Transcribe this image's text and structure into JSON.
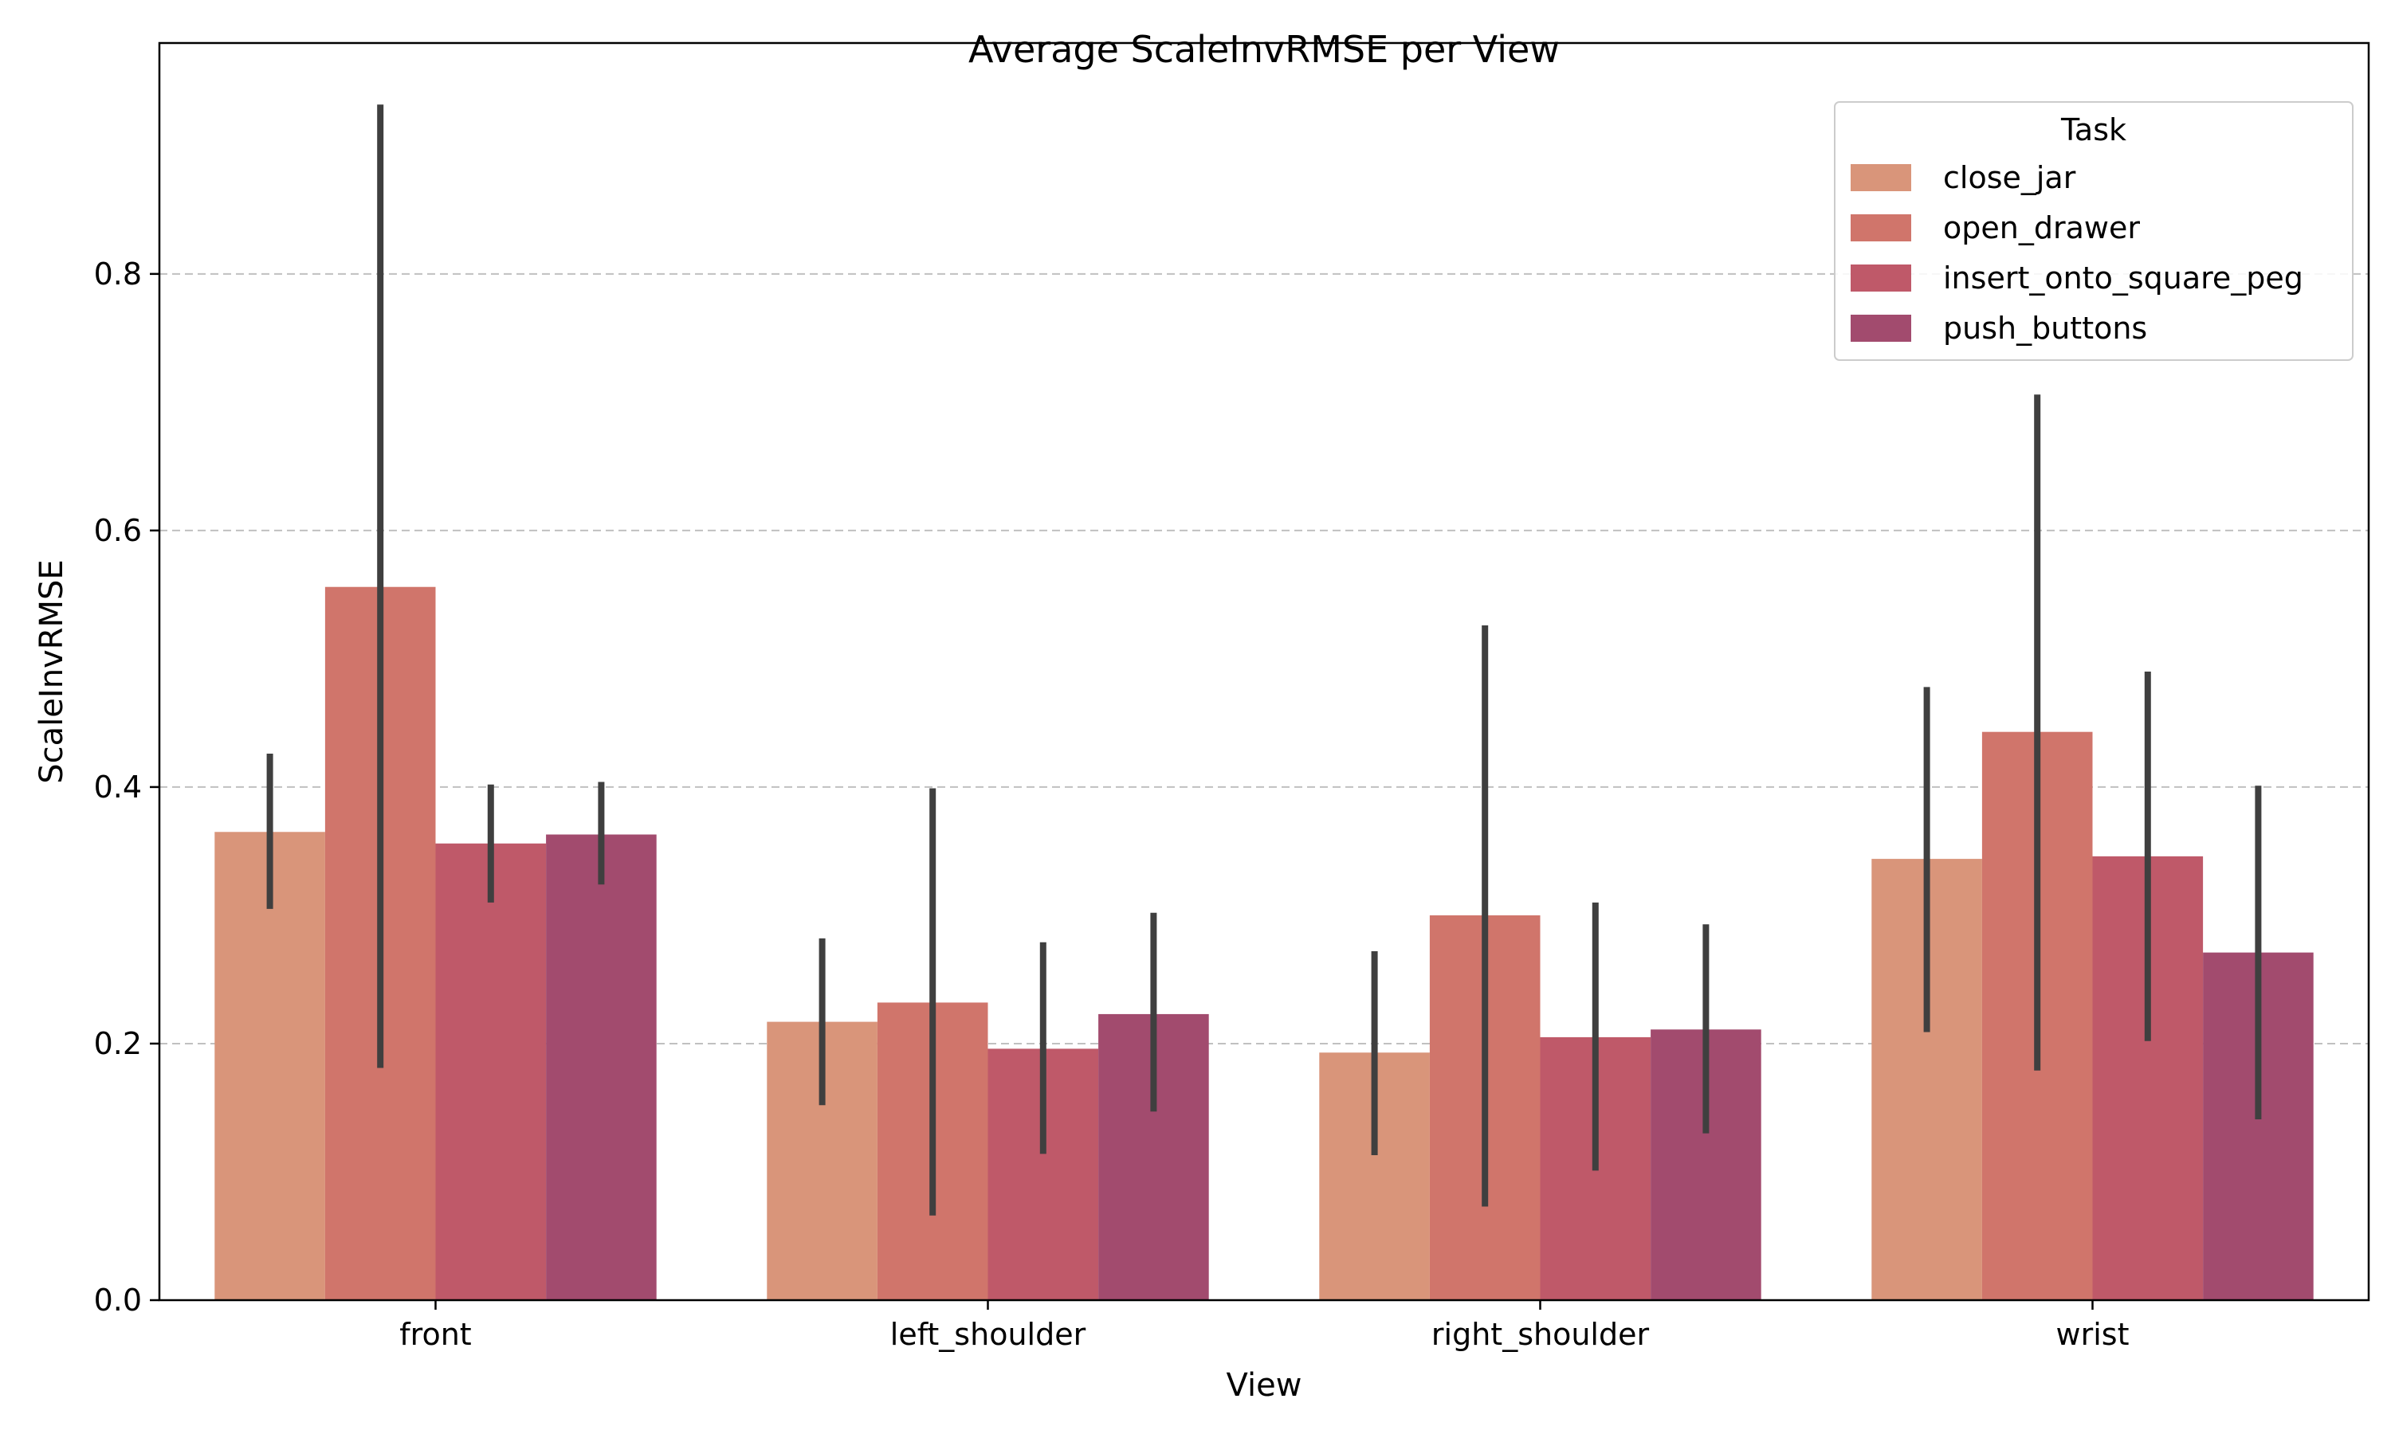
{
  "chart_data": {
    "type": "bar",
    "title": "Average ScaleInvRMSE per View",
    "xlabel": "View",
    "ylabel": "ScaleInvRMSE",
    "categories": [
      "front",
      "left_shoulder",
      "right_shoulder",
      "wrist"
    ],
    "ylim": [
      0,
      0.98
    ],
    "yticks": [
      "0.0",
      "0.2",
      "0.4",
      "0.6",
      "0.8"
    ],
    "grid": "y-dashed",
    "legend": {
      "title": "Task",
      "placement": "top-right"
    },
    "series": [
      {
        "name": "close_jar",
        "color": "#d9957a",
        "values": [
          0.365,
          0.217,
          0.193,
          0.344
        ],
        "err_low": [
          0.305,
          0.152,
          0.113,
          0.209
        ],
        "err_high": [
          0.426,
          0.282,
          0.272,
          0.478
        ]
      },
      {
        "name": "open_drawer",
        "color": "#d0756b",
        "values": [
          0.556,
          0.232,
          0.3,
          0.443
        ],
        "err_low": [
          0.181,
          0.066,
          0.073,
          0.179
        ],
        "err_high": [
          0.932,
          0.399,
          0.526,
          0.706
        ]
      },
      {
        "name": "insert_onto_square_peg",
        "color": "#bf5969",
        "values": [
          0.356,
          0.196,
          0.205,
          0.346
        ],
        "err_low": [
          0.31,
          0.114,
          0.101,
          0.202
        ],
        "err_high": [
          0.402,
          0.279,
          0.31,
          0.49
        ]
      },
      {
        "name": "push_buttons",
        "color": "#a24b6e",
        "values": [
          0.363,
          0.223,
          0.211,
          0.271
        ],
        "err_low": [
          0.324,
          0.147,
          0.13,
          0.141
        ],
        "err_high": [
          0.404,
          0.302,
          0.293,
          0.401
        ]
      }
    ]
  }
}
